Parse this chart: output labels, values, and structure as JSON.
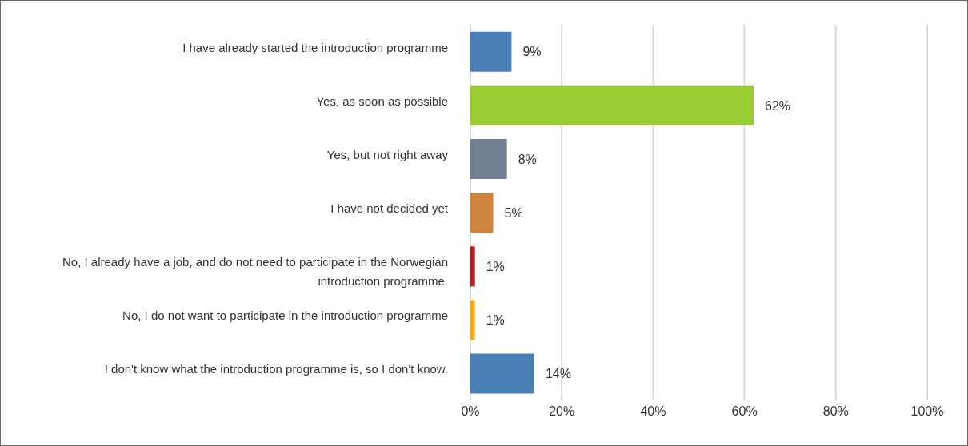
{
  "chart_data": {
    "type": "bar",
    "orientation": "horizontal",
    "categories": [
      "I have already started the introduction programme",
      "Yes, as soon as possible",
      "Yes, but not right away",
      "I have not decided yet",
      "No, I already have a job, and do not need to participate in the Norwegian introduction programme.",
      "No, I do not want to participate in the introduction programme",
      "I don't know what the introduction programme is, so I don't know."
    ],
    "values": [
      9,
      62,
      8,
      5,
      1,
      1,
      14
    ],
    "colors": [
      "#4a7fb5",
      "#9acd32",
      "#708090",
      "#cd853f",
      "#b22222",
      "#f4a81d",
      "#4a7fb5"
    ],
    "value_labels": [
      "9%",
      "62%",
      "8%",
      "5%",
      "1%",
      "1%",
      "14%"
    ],
    "xlim": [
      0,
      100
    ],
    "xticks": [
      {
        "value": 0,
        "label": "0%"
      },
      {
        "value": 20,
        "label": "20%"
      },
      {
        "value": 40,
        "label": "40%"
      },
      {
        "value": 60,
        "label": "60%"
      },
      {
        "value": 80,
        "label": "80%"
      },
      {
        "value": 100,
        "label": "100%"
      }
    ],
    "grid": "x"
  }
}
